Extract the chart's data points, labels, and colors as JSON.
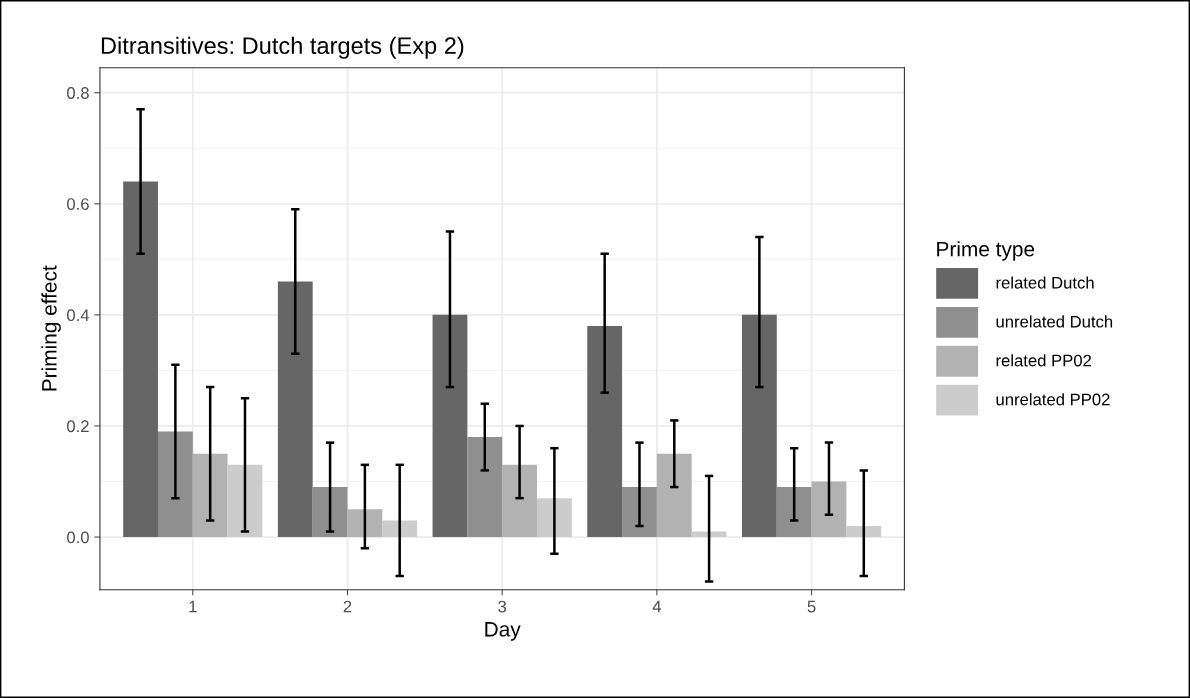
{
  "chart_data": {
    "type": "bar",
    "title": "Ditransitives: Dutch targets (Exp 2)",
    "xlabel": "Day",
    "ylabel": "Priming effect",
    "legend_title": "Prime type",
    "categories": [
      "1",
      "2",
      "3",
      "4",
      "5"
    ],
    "series": [
      {
        "name": "related Dutch",
        "color": "#666666",
        "values": [
          0.64,
          0.46,
          0.4,
          0.38,
          0.4
        ],
        "errors": [
          [
            0.51,
            0.77
          ],
          [
            0.33,
            0.59
          ],
          [
            0.27,
            0.55
          ],
          [
            0.26,
            0.51
          ],
          [
            0.27,
            0.54
          ]
        ]
      },
      {
        "name": "unrelated Dutch",
        "color": "#8f8f8f",
        "values": [
          0.19,
          0.09,
          0.18,
          0.09,
          0.09
        ],
        "errors": [
          [
            0.07,
            0.31
          ],
          [
            0.01,
            0.17
          ],
          [
            0.12,
            0.24
          ],
          [
            0.02,
            0.17
          ],
          [
            0.03,
            0.16
          ]
        ]
      },
      {
        "name": "related PP02",
        "color": "#b2b2b2",
        "values": [
          0.15,
          0.05,
          0.13,
          0.15,
          0.1
        ],
        "errors": [
          [
            0.03,
            0.27
          ],
          [
            -0.02,
            0.13
          ],
          [
            0.07,
            0.2
          ],
          [
            0.09,
            0.21
          ],
          [
            0.04,
            0.17
          ]
        ]
      },
      {
        "name": "unrelated PP02",
        "color": "#cccccc",
        "values": [
          0.13,
          0.03,
          0.07,
          0.01,
          0.02
        ],
        "errors": [
          [
            0.01,
            0.25
          ],
          [
            -0.07,
            0.13
          ],
          [
            -0.03,
            0.16
          ],
          [
            -0.08,
            0.11
          ],
          [
            -0.07,
            0.12
          ]
        ]
      }
    ],
    "ylim": [
      -0.095,
      0.845
    ],
    "yticks": [
      {
        "value": 0,
        "label": "0.0"
      },
      {
        "value": 0.2,
        "label": "0.2"
      },
      {
        "value": 0.4,
        "label": "0.4"
      },
      {
        "value": 0.6,
        "label": "0.6"
      },
      {
        "value": 0.8,
        "label": "0.8"
      }
    ],
    "grid": true,
    "legend": "right"
  }
}
